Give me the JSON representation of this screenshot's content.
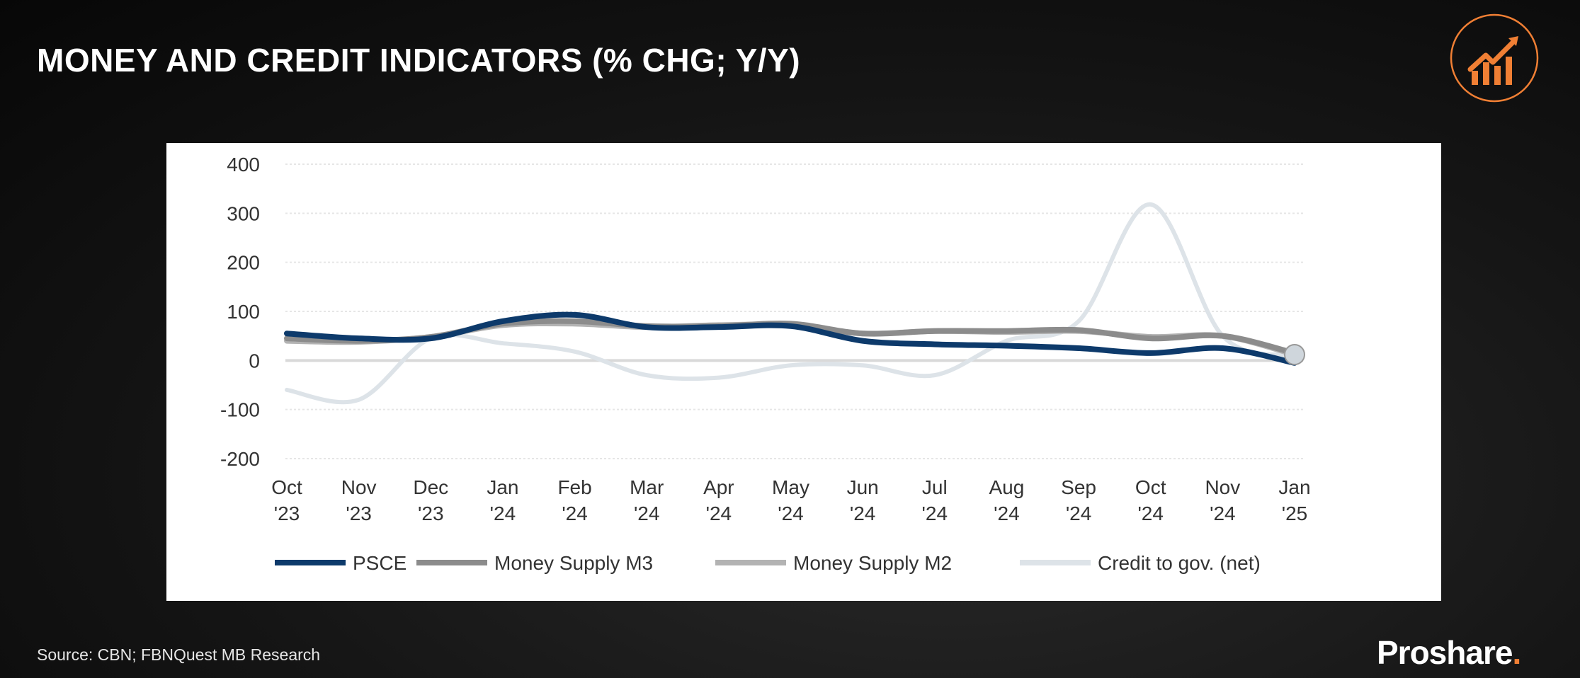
{
  "page": {
    "title": "MONEY AND CREDIT INDICATORS (% CHG; Y/Y)",
    "source": "Source: CBN; FBNQuest MB Research",
    "brand": "Proshare",
    "brand_dot": ".",
    "icon": "growth-chart-icon",
    "accent_color": "#f07f34"
  },
  "chart_data": {
    "type": "line",
    "title": "MONEY AND CREDIT INDICATORS (% CHG; Y/Y)",
    "xlabel": "",
    "ylabel": "",
    "ylim": [
      -200,
      400
    ],
    "yticks": [
      "400",
      "300",
      "200",
      "100",
      "0",
      "-100",
      "-200"
    ],
    "ytick_values": [
      400,
      300,
      200,
      100,
      0,
      -100,
      -200
    ],
    "grid": true,
    "legend_position": "bottom",
    "categories": [
      [
        "Oct",
        "'23"
      ],
      [
        "Nov",
        "'23"
      ],
      [
        "Dec",
        "'23"
      ],
      [
        "Jan",
        "'24"
      ],
      [
        "Feb",
        "'24"
      ],
      [
        "Mar",
        "'24"
      ],
      [
        "Apr",
        "'24"
      ],
      [
        "May",
        "'24"
      ],
      [
        "Jun",
        "'24"
      ],
      [
        "Jul",
        "'24"
      ],
      [
        "Aug",
        "'24"
      ],
      [
        "Sep",
        "'24"
      ],
      [
        "Oct",
        "'24"
      ],
      [
        "Nov",
        "'24"
      ],
      [
        "Jan",
        "'25"
      ]
    ],
    "series": [
      {
        "name": "PSCE",
        "color": "#0d3a6b",
        "values": [
          55,
          45,
          45,
          80,
          93,
          68,
          68,
          70,
          40,
          33,
          30,
          25,
          15,
          25,
          -5
        ]
      },
      {
        "name": "Money Supply M3",
        "color": "#8c8c8c",
        "values": [
          45,
          40,
          48,
          75,
          80,
          70,
          70,
          75,
          55,
          60,
          60,
          62,
          45,
          50,
          15
        ]
      },
      {
        "name": "Money Supply M2",
        "color": "#b3b3b3",
        "values": [
          40,
          38,
          48,
          72,
          75,
          68,
          72,
          72,
          55,
          60,
          58,
          60,
          48,
          50,
          12
        ]
      },
      {
        "name": "Credit to gov. (net)",
        "color": "#dde3e8",
        "values": [
          -60,
          -80,
          45,
          35,
          18,
          -30,
          -35,
          -10,
          -10,
          -30,
          40,
          80,
          318,
          50,
          10
        ]
      }
    ]
  }
}
